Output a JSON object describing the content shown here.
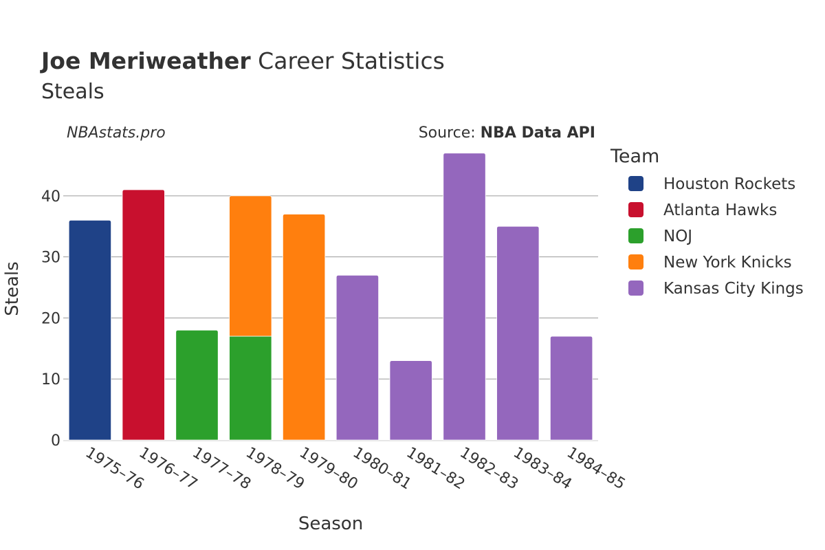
{
  "header": {
    "title_bold": "Joe Meriweather",
    "title_rest": " Career Statistics",
    "subtitle": "Steals",
    "watermark": "NBAstats.pro",
    "source_prefix": "Source: ",
    "source_bold": "NBA Data API"
  },
  "legend": {
    "title": "Team",
    "items": [
      {
        "name": "Houston Rockets",
        "color": "#1f4287"
      },
      {
        "name": "Atlanta Hawks",
        "color": "#c8102e"
      },
      {
        "name": "NOJ",
        "color": "#2ca02c"
      },
      {
        "name": "New York Knicks",
        "color": "#ff7f0e"
      },
      {
        "name": "Kansas City Kings",
        "color": "#9467bd"
      }
    ]
  },
  "chart_data": {
    "type": "bar",
    "stacked": true,
    "xlabel": "Season",
    "ylabel": "Steals",
    "ylim": [
      0,
      49
    ],
    "yticks": [
      0,
      10,
      20,
      30,
      40
    ],
    "grid": true,
    "legend_position": "right",
    "categories": [
      "1975–76",
      "1976–77",
      "1977–78",
      "1978–79",
      "1979–80",
      "1980–81",
      "1981–82",
      "1982–83",
      "1983–84",
      "1984–85"
    ],
    "series": [
      {
        "name": "Houston Rockets",
        "color": "#1f4287",
        "values": [
          36,
          0,
          0,
          0,
          0,
          0,
          0,
          0,
          0,
          0
        ]
      },
      {
        "name": "Atlanta Hawks",
        "color": "#c8102e",
        "values": [
          0,
          41,
          0,
          0,
          0,
          0,
          0,
          0,
          0,
          0
        ]
      },
      {
        "name": "NOJ",
        "color": "#2ca02c",
        "values": [
          0,
          0,
          18,
          17,
          0,
          0,
          0,
          0,
          0,
          0
        ]
      },
      {
        "name": "New York Knicks",
        "color": "#ff7f0e",
        "values": [
          0,
          0,
          0,
          23,
          37,
          0,
          0,
          0,
          0,
          0
        ]
      },
      {
        "name": "Kansas City Kings",
        "color": "#9467bd",
        "values": [
          0,
          0,
          0,
          0,
          0,
          27,
          13,
          47,
          35,
          17
        ]
      }
    ]
  }
}
